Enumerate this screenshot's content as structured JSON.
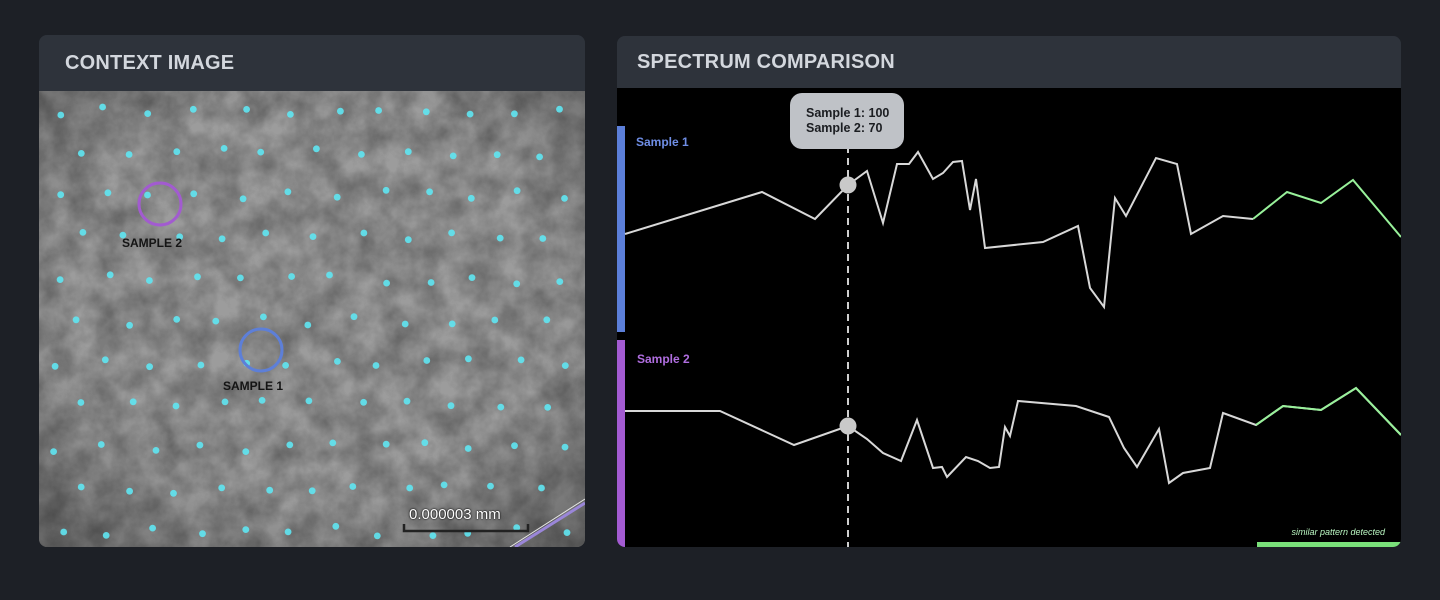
{
  "context_panel": {
    "title": "CONTEXT IMAGE",
    "markers": [
      {
        "label": "SAMPLE 2",
        "color": "#a25bd0"
      },
      {
        "label": "SAMPLE 1",
        "color": "#5d7fd8"
      }
    ],
    "scale_bar_label": "0.000003 mm",
    "dot_color": "#5fe6f2"
  },
  "spectrum_panel": {
    "title": "SPECTRUM COMPARISON",
    "tooltip": {
      "line1": "Sample 1: 100",
      "line2": "Sample 2: 70"
    },
    "tracks": [
      {
        "name": "Sample 1",
        "color": "#5c7fd9"
      },
      {
        "name": "Sample 2",
        "color": "#a35bd2"
      }
    ],
    "similar_pattern_note": "similar pattern detected",
    "highlight_color": "#98f19a",
    "line_color": "#d8d8d8"
  }
}
